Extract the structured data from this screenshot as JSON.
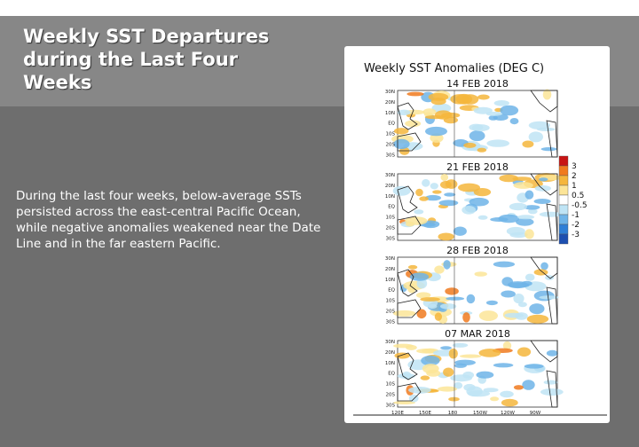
{
  "slide": {
    "title": "Weekly SST Departures during the Last Four Weeks",
    "body": "During the last four weeks, below-average SSTs persisted across the east-central Pacific Ocean, while negative anomalies weakened near the Date Line and in the far eastern Pacific."
  },
  "figure": {
    "title": "Weekly SST Anomalies (DEG C)",
    "panels": [
      {
        "date": "14 FEB 2018"
      },
      {
        "date": "21 FEB 2018"
      },
      {
        "date": "28 FEB 2018"
      },
      {
        "date": "07 MAR 2018"
      }
    ],
    "lat_labels": [
      "30N",
      "20N",
      "10N",
      "EQ",
      "10S",
      "20S",
      "30S"
    ],
    "lon_labels": [
      "120E",
      "150E",
      "180",
      "150W",
      "120W",
      "90W"
    ],
    "colorbar": {
      "labels": [
        "3",
        "2",
        "1",
        "0.5",
        "-0.5",
        "-1",
        "-2",
        "-3"
      ],
      "colors": [
        "#c81414",
        "#f07a1e",
        "#f5b63c",
        "#fce598",
        "#ffffff",
        "#bfe4f5",
        "#6fb4e8",
        "#2f7fd6",
        "#1d4fb0"
      ]
    }
  }
}
